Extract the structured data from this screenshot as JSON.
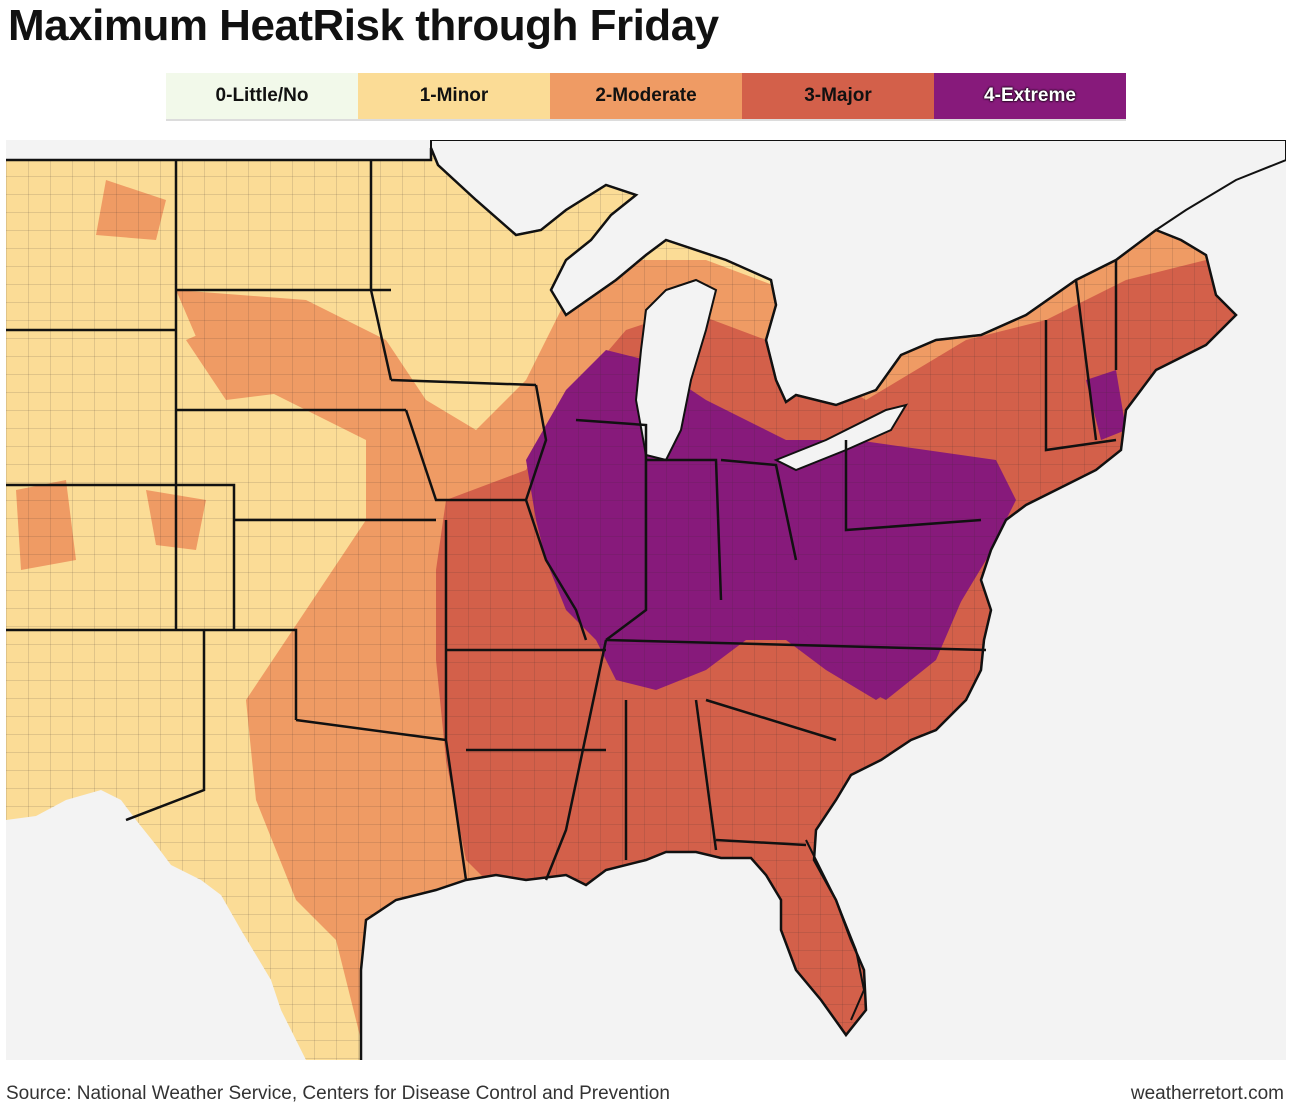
{
  "title": "Maximum HeatRisk through Friday",
  "legend": [
    {
      "label": "0-Little/No",
      "color": "#f2f9ea"
    },
    {
      "label": "1-Minor",
      "color": "#fbdc96"
    },
    {
      "label": "2-Moderate",
      "color": "#ef9b64"
    },
    {
      "label": "3-Major",
      "color": "#d3604a"
    },
    {
      "label": "4-Extreme",
      "color": "#871a7b"
    }
  ],
  "colors": {
    "water": "#f3f3f3",
    "minor": "#fbdc96",
    "moderate": "#ef9b64",
    "major": "#d3604a",
    "extreme": "#871a7b"
  },
  "source": "Source: National Weather Service, Centers for Disease Control and Prevention",
  "credit": "weatherretort.com"
}
